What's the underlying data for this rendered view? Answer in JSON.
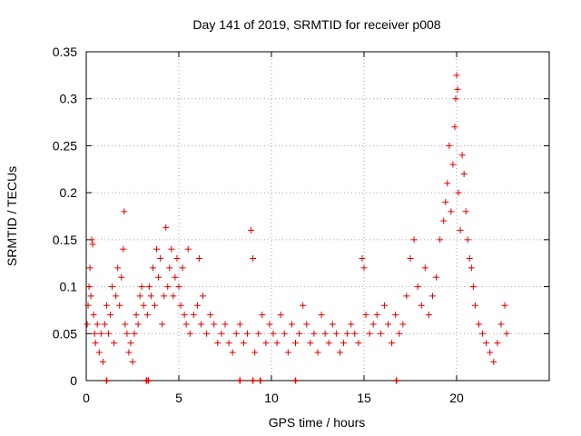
{
  "chart_data": {
    "type": "scatter",
    "title": "Day 141 of 2019, SRMTID for receiver p008",
    "xlabel": "GPS time / hours",
    "ylabel": "SRMTID / TECUs",
    "xlim": [
      0,
      25
    ],
    "ylim": [
      0,
      0.35
    ],
    "xticks": [
      0,
      5,
      10,
      15,
      20
    ],
    "xtick_labels": [
      "0",
      "5",
      "10",
      "15",
      "20"
    ],
    "yticks": [
      0,
      0.05,
      0.1,
      0.15,
      0.2,
      0.25,
      0.3,
      0.35
    ],
    "ytick_labels": [
      "0",
      "0.05",
      "0.1",
      "0.15",
      "0.2",
      "0.25",
      "0.3",
      "0.35"
    ],
    "grid": true,
    "marker": "plus",
    "color": "#e00000",
    "series": [
      {
        "name": "SRMTID",
        "points": [
          [
            0.05,
            0.06
          ],
          [
            0.1,
            0.08
          ],
          [
            0.15,
            0.1
          ],
          [
            0.2,
            0.12
          ],
          [
            0.25,
            0.09
          ],
          [
            0.3,
            0.15
          ],
          [
            0.35,
            0.145
          ],
          [
            0.4,
            0.07
          ],
          [
            0.45,
            0.05
          ],
          [
            0.5,
            0.04
          ],
          [
            0.6,
            0.06
          ],
          [
            0.7,
            0.03
          ],
          [
            0.8,
            0.05
          ],
          [
            0.9,
            0.02
          ],
          [
            1.0,
            0.06
          ],
          [
            1.1,
            0.08
          ],
          [
            1.2,
            0.05
          ],
          [
            1.3,
            0.07
          ],
          [
            1.4,
            0.1
          ],
          [
            1.5,
            0.04
          ],
          [
            1.6,
            0.09
          ],
          [
            1.7,
            0.12
          ],
          [
            1.8,
            0.08
          ],
          [
            1.9,
            0.11
          ],
          [
            2.0,
            0.14
          ],
          [
            2.05,
            0.18
          ],
          [
            2.1,
            0.06
          ],
          [
            2.2,
            0.05
          ],
          [
            2.3,
            0.03
          ],
          [
            2.4,
            0.04
          ],
          [
            2.5,
            0.02
          ],
          [
            2.6,
            0.05
          ],
          [
            2.7,
            0.07
          ],
          [
            2.8,
            0.06
          ],
          [
            2.9,
            0.09
          ],
          [
            3.0,
            0.1
          ],
          [
            3.1,
            0.08
          ],
          [
            3.3,
            0.07
          ],
          [
            3.4,
            0.1
          ],
          [
            3.5,
            0.09
          ],
          [
            3.6,
            0.12
          ],
          [
            3.7,
            0.08
          ],
          [
            3.8,
            0.14
          ],
          [
            3.9,
            0.11
          ],
          [
            4.0,
            0.13
          ],
          [
            4.1,
            0.06
          ],
          [
            4.2,
            0.09
          ],
          [
            4.3,
            0.163
          ],
          [
            4.4,
            0.1
          ],
          [
            4.5,
            0.12
          ],
          [
            4.6,
            0.14
          ],
          [
            4.7,
            0.09
          ],
          [
            4.8,
            0.11
          ],
          [
            4.9,
            0.13
          ],
          [
            5.0,
            0.1
          ],
          [
            5.1,
            0.08
          ],
          [
            5.2,
            0.12
          ],
          [
            5.3,
            0.07
          ],
          [
            5.4,
            0.06
          ],
          [
            5.5,
            0.14
          ],
          [
            5.6,
            0.05
          ],
          [
            5.8,
            0.07
          ],
          [
            6.0,
            0.08
          ],
          [
            6.1,
            0.13
          ],
          [
            6.2,
            0.06
          ],
          [
            6.3,
            0.09
          ],
          [
            6.5,
            0.05
          ],
          [
            6.7,
            0.07
          ],
          [
            6.9,
            0.06
          ],
          [
            7.1,
            0.04
          ],
          [
            7.3,
            0.05
          ],
          [
            7.5,
            0.06
          ],
          [
            7.7,
            0.04
          ],
          [
            7.9,
            0.03
          ],
          [
            8.1,
            0.05
          ],
          [
            8.3,
            0.06
          ],
          [
            8.5,
            0.04
          ],
          [
            8.7,
            0.05
          ],
          [
            8.9,
            0.16
          ],
          [
            9.0,
            0.13
          ],
          [
            9.1,
            0.03
          ],
          [
            9.3,
            0.05
          ],
          [
            9.5,
            0.07
          ],
          [
            9.7,
            0.04
          ],
          [
            9.9,
            0.06
          ],
          [
            10.1,
            0.05
          ],
          [
            10.3,
            0.04
          ],
          [
            10.5,
            0.07
          ],
          [
            10.7,
            0.05
          ],
          [
            10.9,
            0.03
          ],
          [
            11.1,
            0.06
          ],
          [
            11.3,
            0.04
          ],
          [
            11.5,
            0.05
          ],
          [
            11.7,
            0.08
          ],
          [
            11.9,
            0.06
          ],
          [
            12.1,
            0.04
          ],
          [
            12.3,
            0.05
          ],
          [
            12.5,
            0.03
          ],
          [
            12.7,
            0.07
          ],
          [
            12.9,
            0.05
          ],
          [
            13.1,
            0.04
          ],
          [
            13.3,
            0.06
          ],
          [
            13.5,
            0.05
          ],
          [
            13.7,
            0.03
          ],
          [
            13.9,
            0.04
          ],
          [
            14.1,
            0.05
          ],
          [
            14.3,
            0.06
          ],
          [
            14.5,
            0.05
          ],
          [
            14.7,
            0.04
          ],
          [
            14.9,
            0.13
          ],
          [
            15.0,
            0.12
          ],
          [
            15.1,
            0.07
          ],
          [
            15.3,
            0.05
          ],
          [
            15.5,
            0.06
          ],
          [
            15.7,
            0.07
          ],
          [
            15.9,
            0.05
          ],
          [
            16.1,
            0.08
          ],
          [
            16.3,
            0.06
          ],
          [
            16.5,
            0.04
          ],
          [
            16.7,
            0.07
          ],
          [
            16.9,
            0.05
          ],
          [
            17.1,
            0.06
          ],
          [
            17.3,
            0.09
          ],
          [
            17.5,
            0.13
          ],
          [
            17.7,
            0.15
          ],
          [
            17.9,
            0.1
          ],
          [
            18.1,
            0.08
          ],
          [
            18.3,
            0.12
          ],
          [
            18.5,
            0.07
          ],
          [
            18.7,
            0.09
          ],
          [
            18.9,
            0.11
          ],
          [
            19.1,
            0.15
          ],
          [
            19.3,
            0.17
          ],
          [
            19.4,
            0.19
          ],
          [
            19.5,
            0.21
          ],
          [
            19.6,
            0.25
          ],
          [
            19.7,
            0.18
          ],
          [
            19.8,
            0.23
          ],
          [
            19.9,
            0.27
          ],
          [
            19.95,
            0.3
          ],
          [
            20.0,
            0.325
          ],
          [
            20.05,
            0.31
          ],
          [
            20.1,
            0.2
          ],
          [
            20.2,
            0.16
          ],
          [
            20.3,
            0.24
          ],
          [
            20.4,
            0.22
          ],
          [
            20.5,
            0.18
          ],
          [
            20.6,
            0.15
          ],
          [
            20.7,
            0.13
          ],
          [
            20.8,
            0.12
          ],
          [
            20.9,
            0.1
          ],
          [
            21.0,
            0.08
          ],
          [
            21.2,
            0.06
          ],
          [
            21.4,
            0.05
          ],
          [
            21.6,
            0.04
          ],
          [
            21.8,
            0.03
          ],
          [
            22.0,
            0.02
          ],
          [
            22.2,
            0.04
          ],
          [
            22.4,
            0.06
          ],
          [
            22.6,
            0.08
          ],
          [
            22.7,
            0.05
          ]
        ]
      }
    ],
    "zero_points_x": [
      1.1,
      3.25,
      3.35,
      8.3,
      9.0,
      9.4,
      11.3,
      16.75
    ]
  }
}
